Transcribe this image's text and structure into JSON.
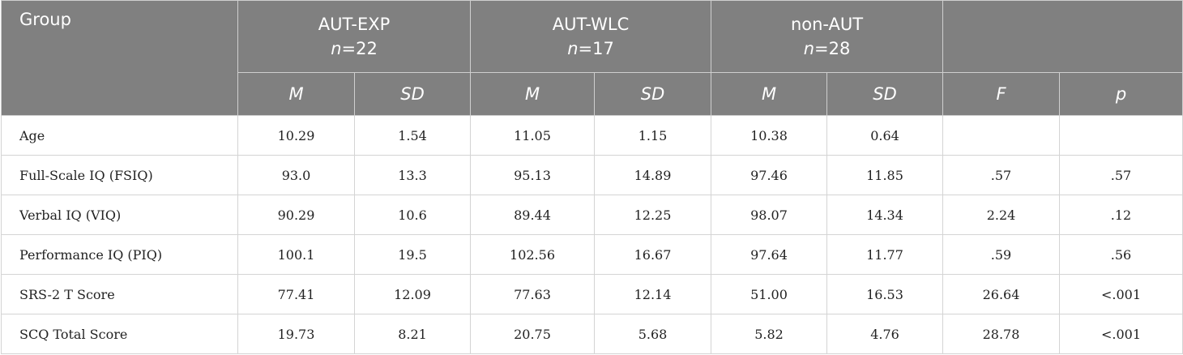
{
  "table": {
    "header": {
      "group": "Group",
      "groups": [
        {
          "name": "AUT-EXP",
          "n": "n=22"
        },
        {
          "name": "AUT-WLC",
          "n": "n=17"
        },
        {
          "name": "non-AUT",
          "n": "n=28"
        }
      ],
      "subheaders": [
        "M",
        "SD",
        "M",
        "SD",
        "M",
        "SD",
        "F",
        "p"
      ]
    },
    "rows": [
      {
        "label": "Age",
        "cells": [
          "10.29",
          "1.54",
          "11.05",
          "1.15",
          "10.38",
          "0.64",
          null,
          null
        ]
      },
      {
        "label": "Full-Scale IQ (FSIQ)",
        "cells": [
          "93.0",
          "13.3",
          "95.13",
          "14.89",
          "97.46",
          "11.85",
          ".57",
          ".57"
        ]
      },
      {
        "label": "Verbal IQ (VIQ)",
        "cells": [
          "90.29",
          "10.6",
          "89.44",
          "12.25",
          "98.07",
          "14.34",
          "2.24",
          ".12"
        ]
      },
      {
        "label": "Performance IQ (PIQ)",
        "cells": [
          "100.1",
          "19.5",
          "102.56",
          "16.67",
          "97.64",
          "11.77",
          ".59",
          ".56"
        ]
      },
      {
        "label": "SRS-2 T Score",
        "cells": [
          "77.41",
          "12.09",
          "77.63",
          "12.14",
          "51.00",
          "16.53",
          "26.64",
          "<.001"
        ]
      },
      {
        "label": "SCQ Total Score",
        "cells": [
          "19.73",
          "8.21",
          "20.75",
          "5.68",
          "5.82",
          "4.76",
          "28.78",
          "<.001"
        ]
      }
    ]
  }
}
